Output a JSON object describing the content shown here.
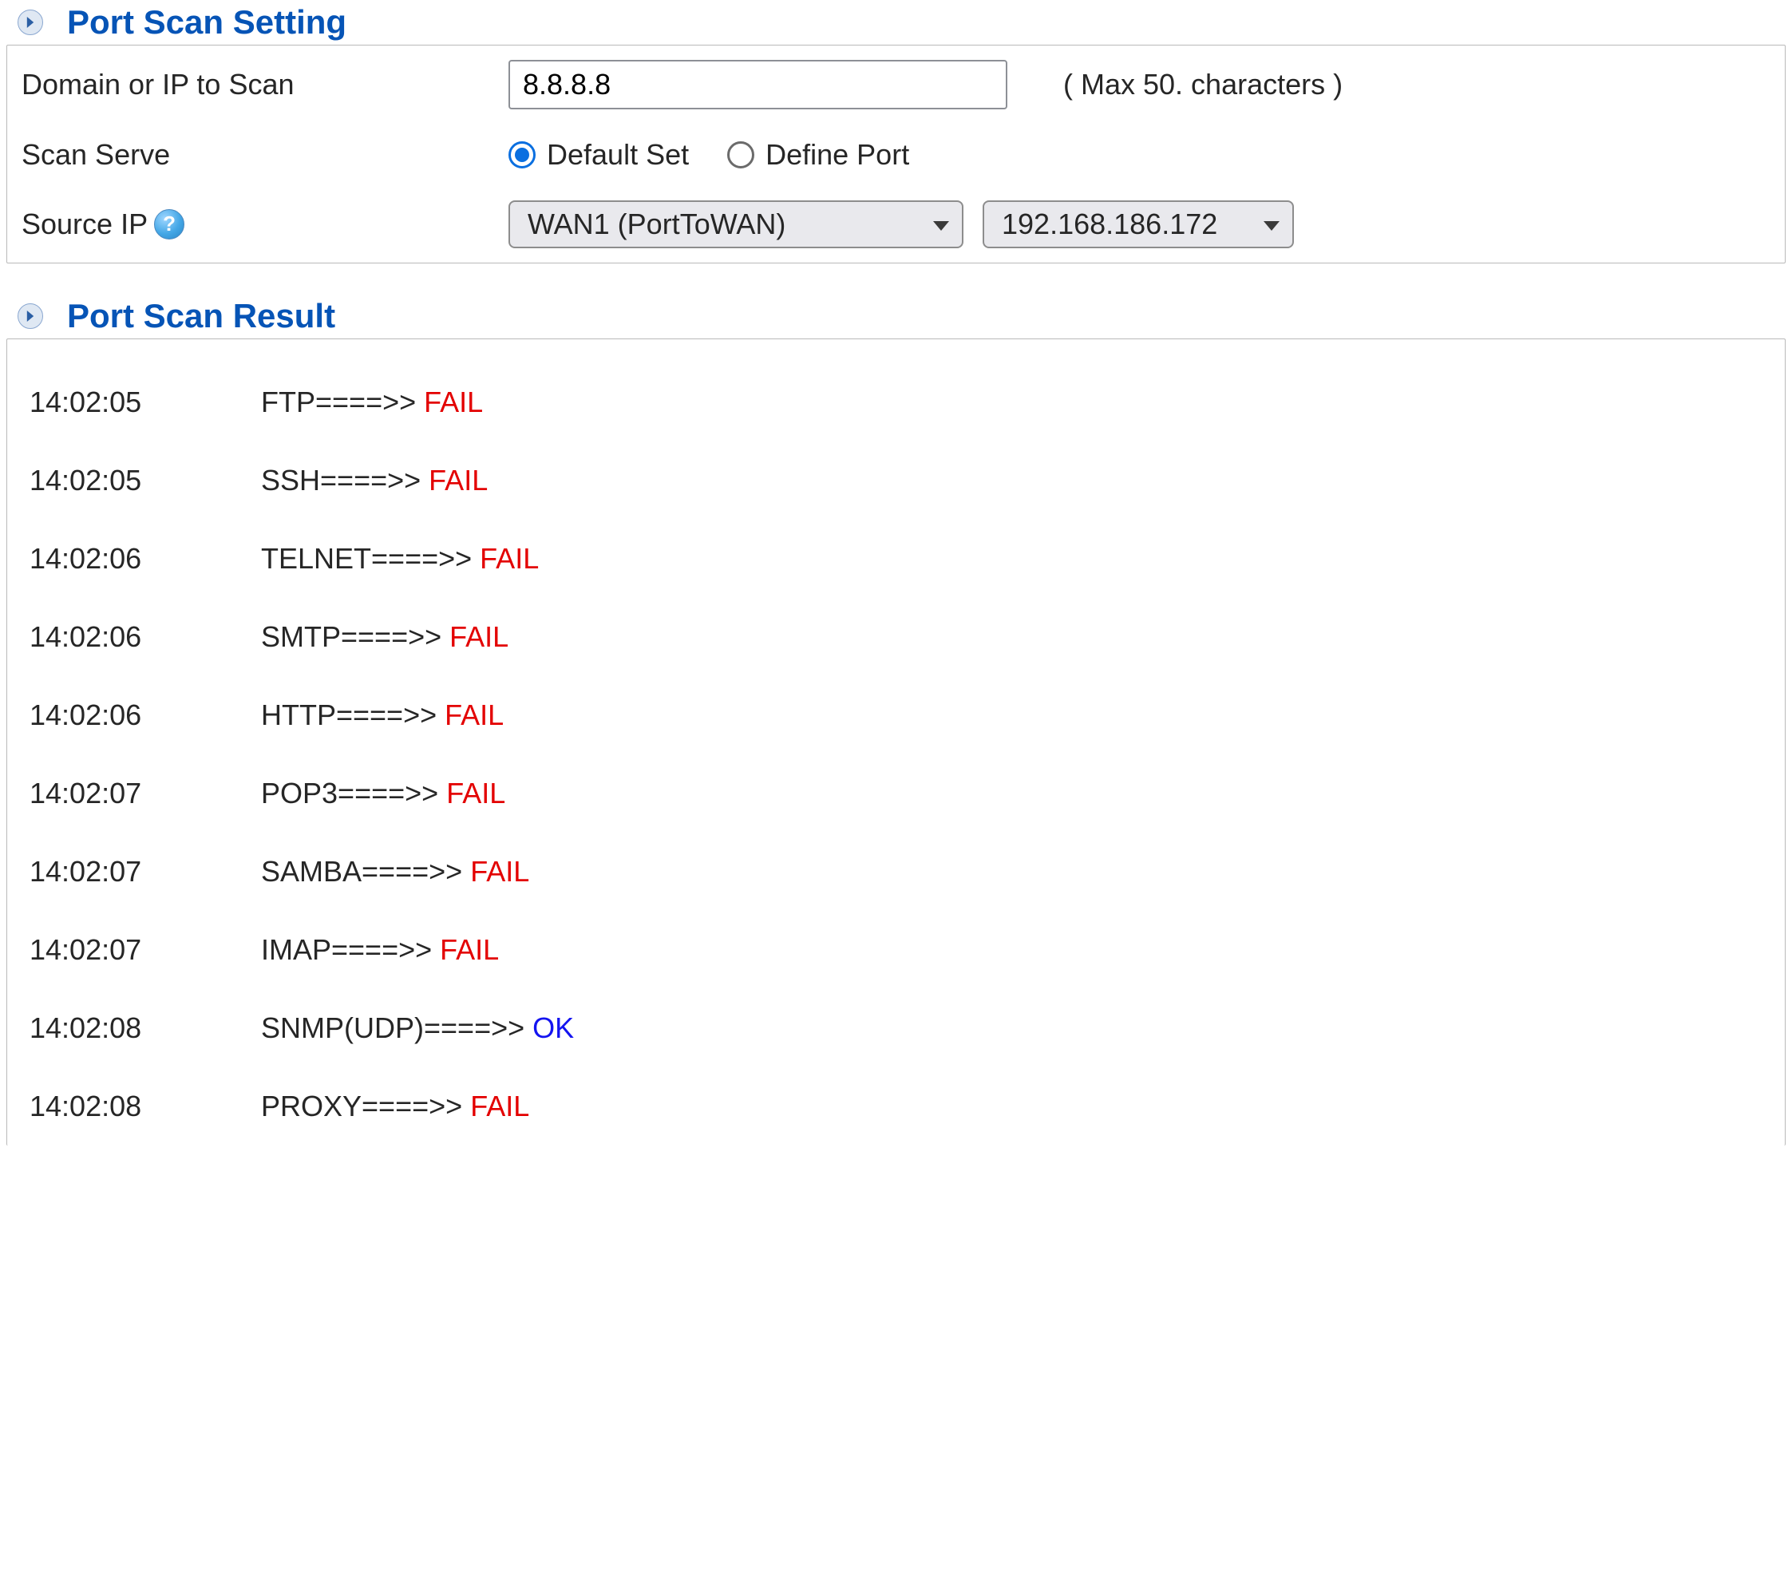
{
  "colors": {
    "text": "#262626",
    "header_blue": "#0654b6",
    "ok_blue": "#1414f0",
    "fail_red": "#e30000",
    "panel_border": "#b9b9b9",
    "chevron_bg": "#dfe8f3",
    "chevron_border": "#8aa7d0",
    "select_bg": "#e9e9ed",
    "select_border": "#8d8d8d",
    "input_border": "#8d9096",
    "background": "#ffffff"
  },
  "setting": {
    "title": "Port Scan Setting",
    "domain_label": "Domain or IP to Scan",
    "domain_value": "8.8.8.8",
    "domain_hint": "( Max 50. characters )",
    "serve_label": "Scan Serve",
    "serve_options": {
      "default": {
        "label": "Default Set",
        "selected": true
      },
      "define": {
        "label": "Define Port",
        "selected": false
      }
    },
    "source_label": "Source IP",
    "help_glyph": "?",
    "wan_select": "WAN1 (PortToWAN)",
    "ip_select": "192.168.186.172"
  },
  "result": {
    "title": "Port Scan Result",
    "arrow": "====>> ",
    "rows": [
      {
        "time": "14:02:05",
        "proto": "FTP",
        "status": "FAIL"
      },
      {
        "time": "14:02:05",
        "proto": "SSH",
        "status": "FAIL"
      },
      {
        "time": "14:02:06",
        "proto": "TELNET",
        "status": "FAIL"
      },
      {
        "time": "14:02:06",
        "proto": "SMTP",
        "status": "FAIL"
      },
      {
        "time": "14:02:06",
        "proto": "HTTP",
        "status": "FAIL"
      },
      {
        "time": "14:02:07",
        "proto": "POP3",
        "status": "FAIL"
      },
      {
        "time": "14:02:07",
        "proto": "SAMBA",
        "status": "FAIL"
      },
      {
        "time": "14:02:07",
        "proto": "IMAP",
        "status": "FAIL"
      },
      {
        "time": "14:02:08",
        "proto": "SNMP(UDP)",
        "status": "OK"
      },
      {
        "time": "14:02:08",
        "proto": "PROXY",
        "status": "FAIL"
      }
    ]
  }
}
